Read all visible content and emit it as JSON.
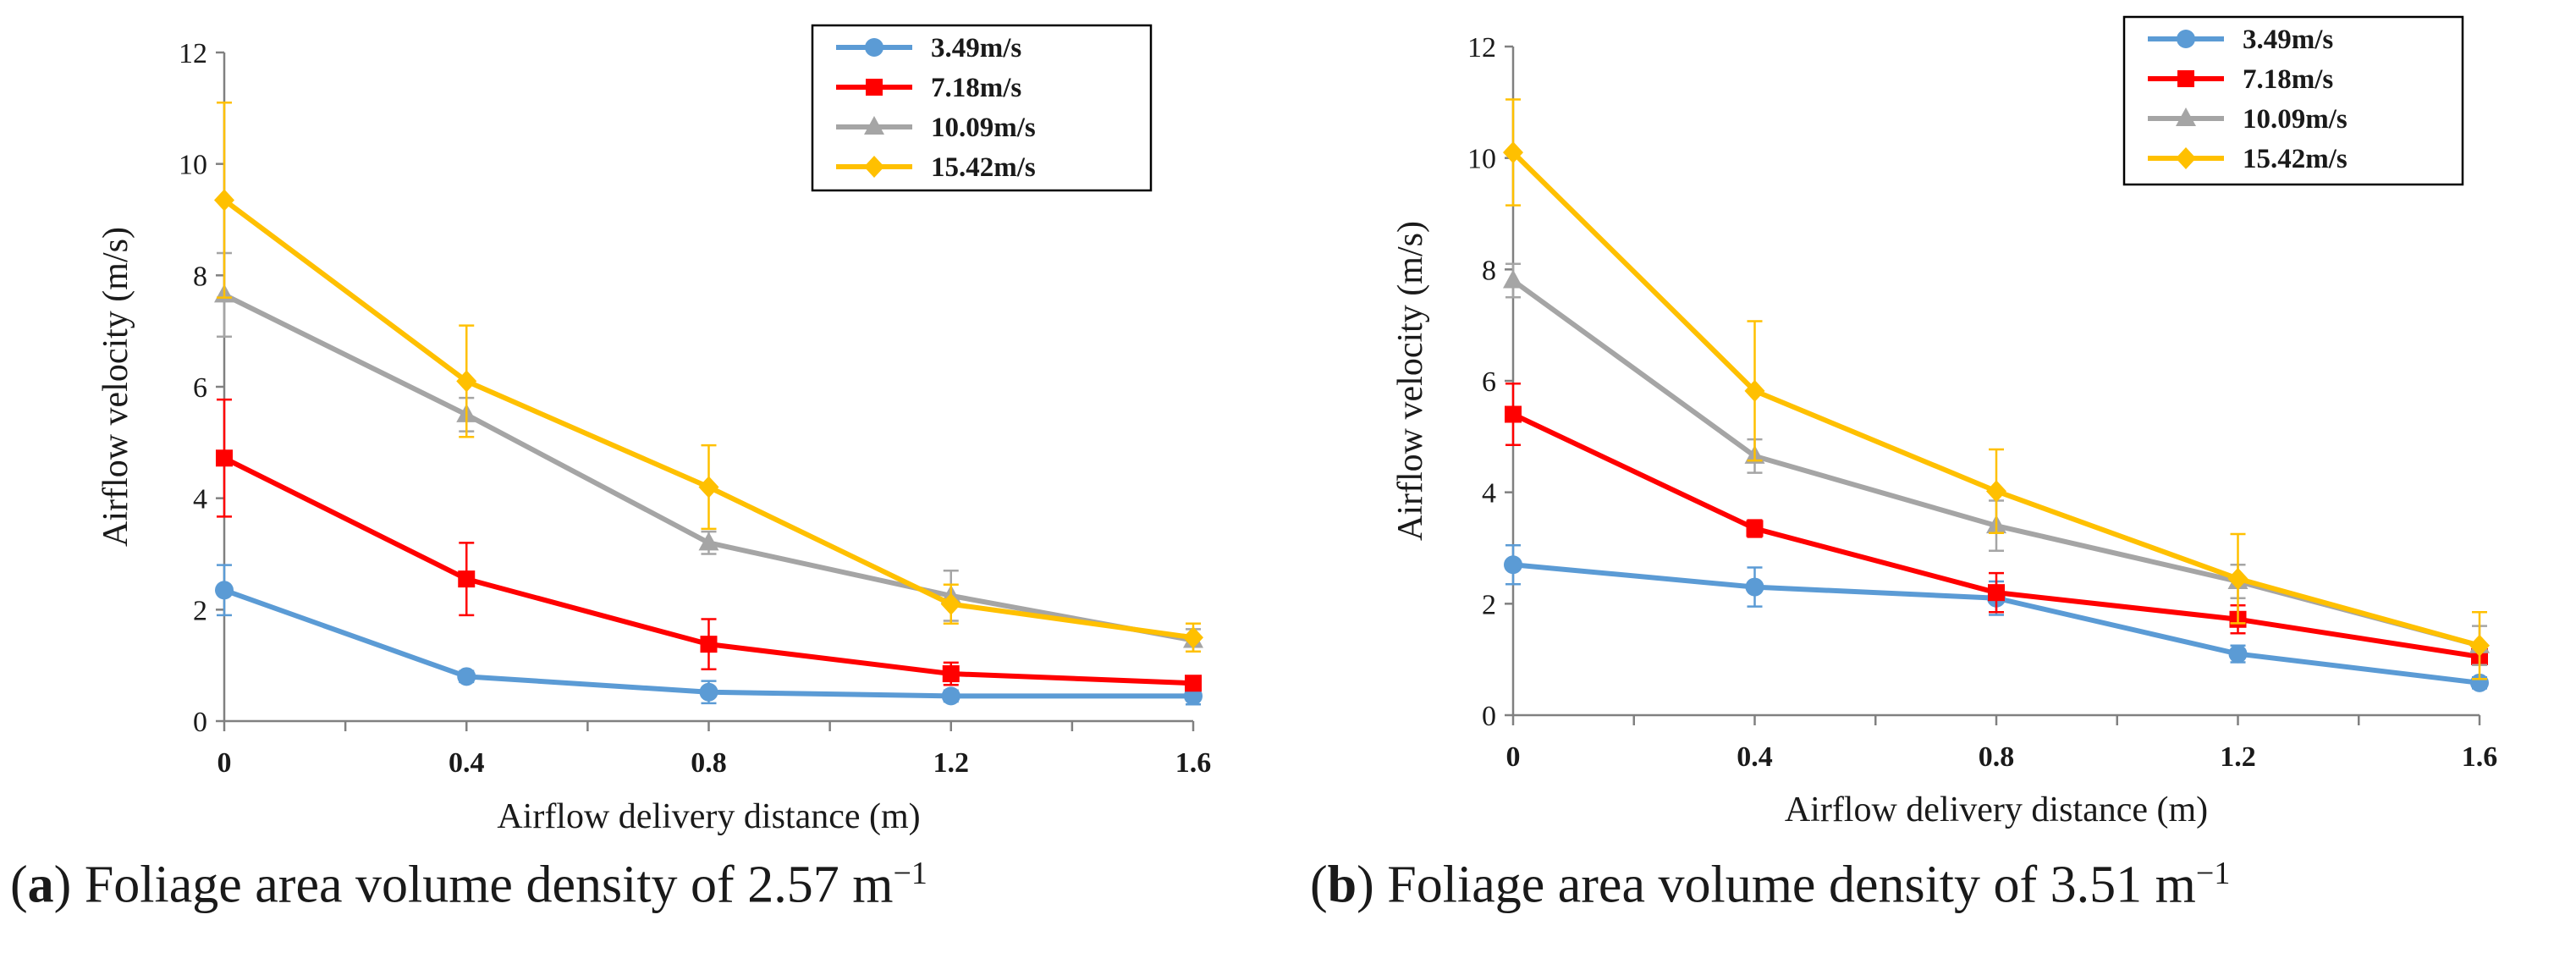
{
  "chart_data": [
    {
      "type": "line",
      "panel": "a",
      "xlabel": "Airflow delivery distance (m)",
      "ylabel": "Airflow velocity (m/s)",
      "x": [
        0,
        0.4,
        0.8,
        1.2,
        1.6
      ],
      "x_ticks": [
        "0",
        "0.4",
        "0.8",
        "1.2",
        "1.6"
      ],
      "y_ticks": [
        "0",
        "2",
        "4",
        "6",
        "8",
        "10",
        "12"
      ],
      "ylim": [
        0,
        12
      ],
      "xlim": [
        0,
        1.6
      ],
      "legend_position": "top-right",
      "series": [
        {
          "name": "3.49m/s",
          "color": "#5B9BD5",
          "marker": "circle",
          "values": [
            2.35,
            0.8,
            0.52,
            0.45,
            0.45
          ],
          "errors": [
            0.45,
            0.1,
            0.2,
            0.1,
            0.15
          ]
        },
        {
          "name": "7.18m/s",
          "color": "#FF0000",
          "marker": "square",
          "values": [
            4.72,
            2.55,
            1.38,
            0.85,
            0.68
          ],
          "errors": [
            1.05,
            0.65,
            0.45,
            0.2,
            0.1
          ]
        },
        {
          "name": "10.09m/s",
          "color": "#A5A5A5",
          "marker": "triangle",
          "values": [
            7.65,
            5.5,
            3.2,
            2.25,
            1.45
          ],
          "errors": [
            0.75,
            0.3,
            0.2,
            0.45,
            0.2
          ]
        },
        {
          "name": "15.42m/s",
          "color": "#FFC000",
          "marker": "diamond",
          "values": [
            9.35,
            6.1,
            4.2,
            2.1,
            1.5
          ],
          "errors": [
            1.75,
            1.0,
            0.75,
            0.35,
            0.25
          ]
        }
      ],
      "caption": {
        "label": "a",
        "text": "Foliage area volume density of 2.57 m",
        "superscript": "−1"
      }
    },
    {
      "type": "line",
      "panel": "b",
      "xlabel": "Airflow delivery distance (m)",
      "ylabel": "Airflow velocity (m/s)",
      "x": [
        0,
        0.4,
        0.8,
        1.2,
        1.6
      ],
      "x_ticks": [
        "0",
        "0.4",
        "0.8",
        "1.2",
        "1.6"
      ],
      "y_ticks": [
        "0",
        "2",
        "4",
        "6",
        "8",
        "10",
        "12"
      ],
      "ylim": [
        0,
        12
      ],
      "xlim": [
        0,
        1.6
      ],
      "legend_position": "top-right",
      "series": [
        {
          "name": "3.49m/s",
          "color": "#5B9BD5",
          "marker": "circle",
          "values": [
            2.7,
            2.3,
            2.1,
            1.1,
            0.58
          ],
          "errors": [
            0.35,
            0.35,
            0.3,
            0.15,
            0.1
          ]
        },
        {
          "name": "7.18m/s",
          "color": "#FF0000",
          "marker": "square",
          "values": [
            5.4,
            3.35,
            2.2,
            1.72,
            1.05
          ],
          "errors": [
            0.55,
            0.15,
            0.35,
            0.25,
            0.15
          ]
        },
        {
          "name": "10.09m/s",
          "color": "#A5A5A5",
          "marker": "triangle",
          "values": [
            7.8,
            4.65,
            3.4,
            2.4,
            1.25
          ],
          "errors": [
            0.3,
            0.3,
            0.45,
            0.3,
            0.35
          ]
        },
        {
          "name": "15.42m/s",
          "color": "#FFC000",
          "marker": "diamond",
          "values": [
            10.1,
            5.82,
            4.02,
            2.45,
            1.25
          ],
          "errors": [
            0.95,
            1.25,
            0.75,
            0.8,
            0.6
          ]
        }
      ],
      "caption": {
        "label": "b",
        "text": "Foliage area volume density of 3.51 m",
        "superscript": "−1"
      }
    }
  ]
}
